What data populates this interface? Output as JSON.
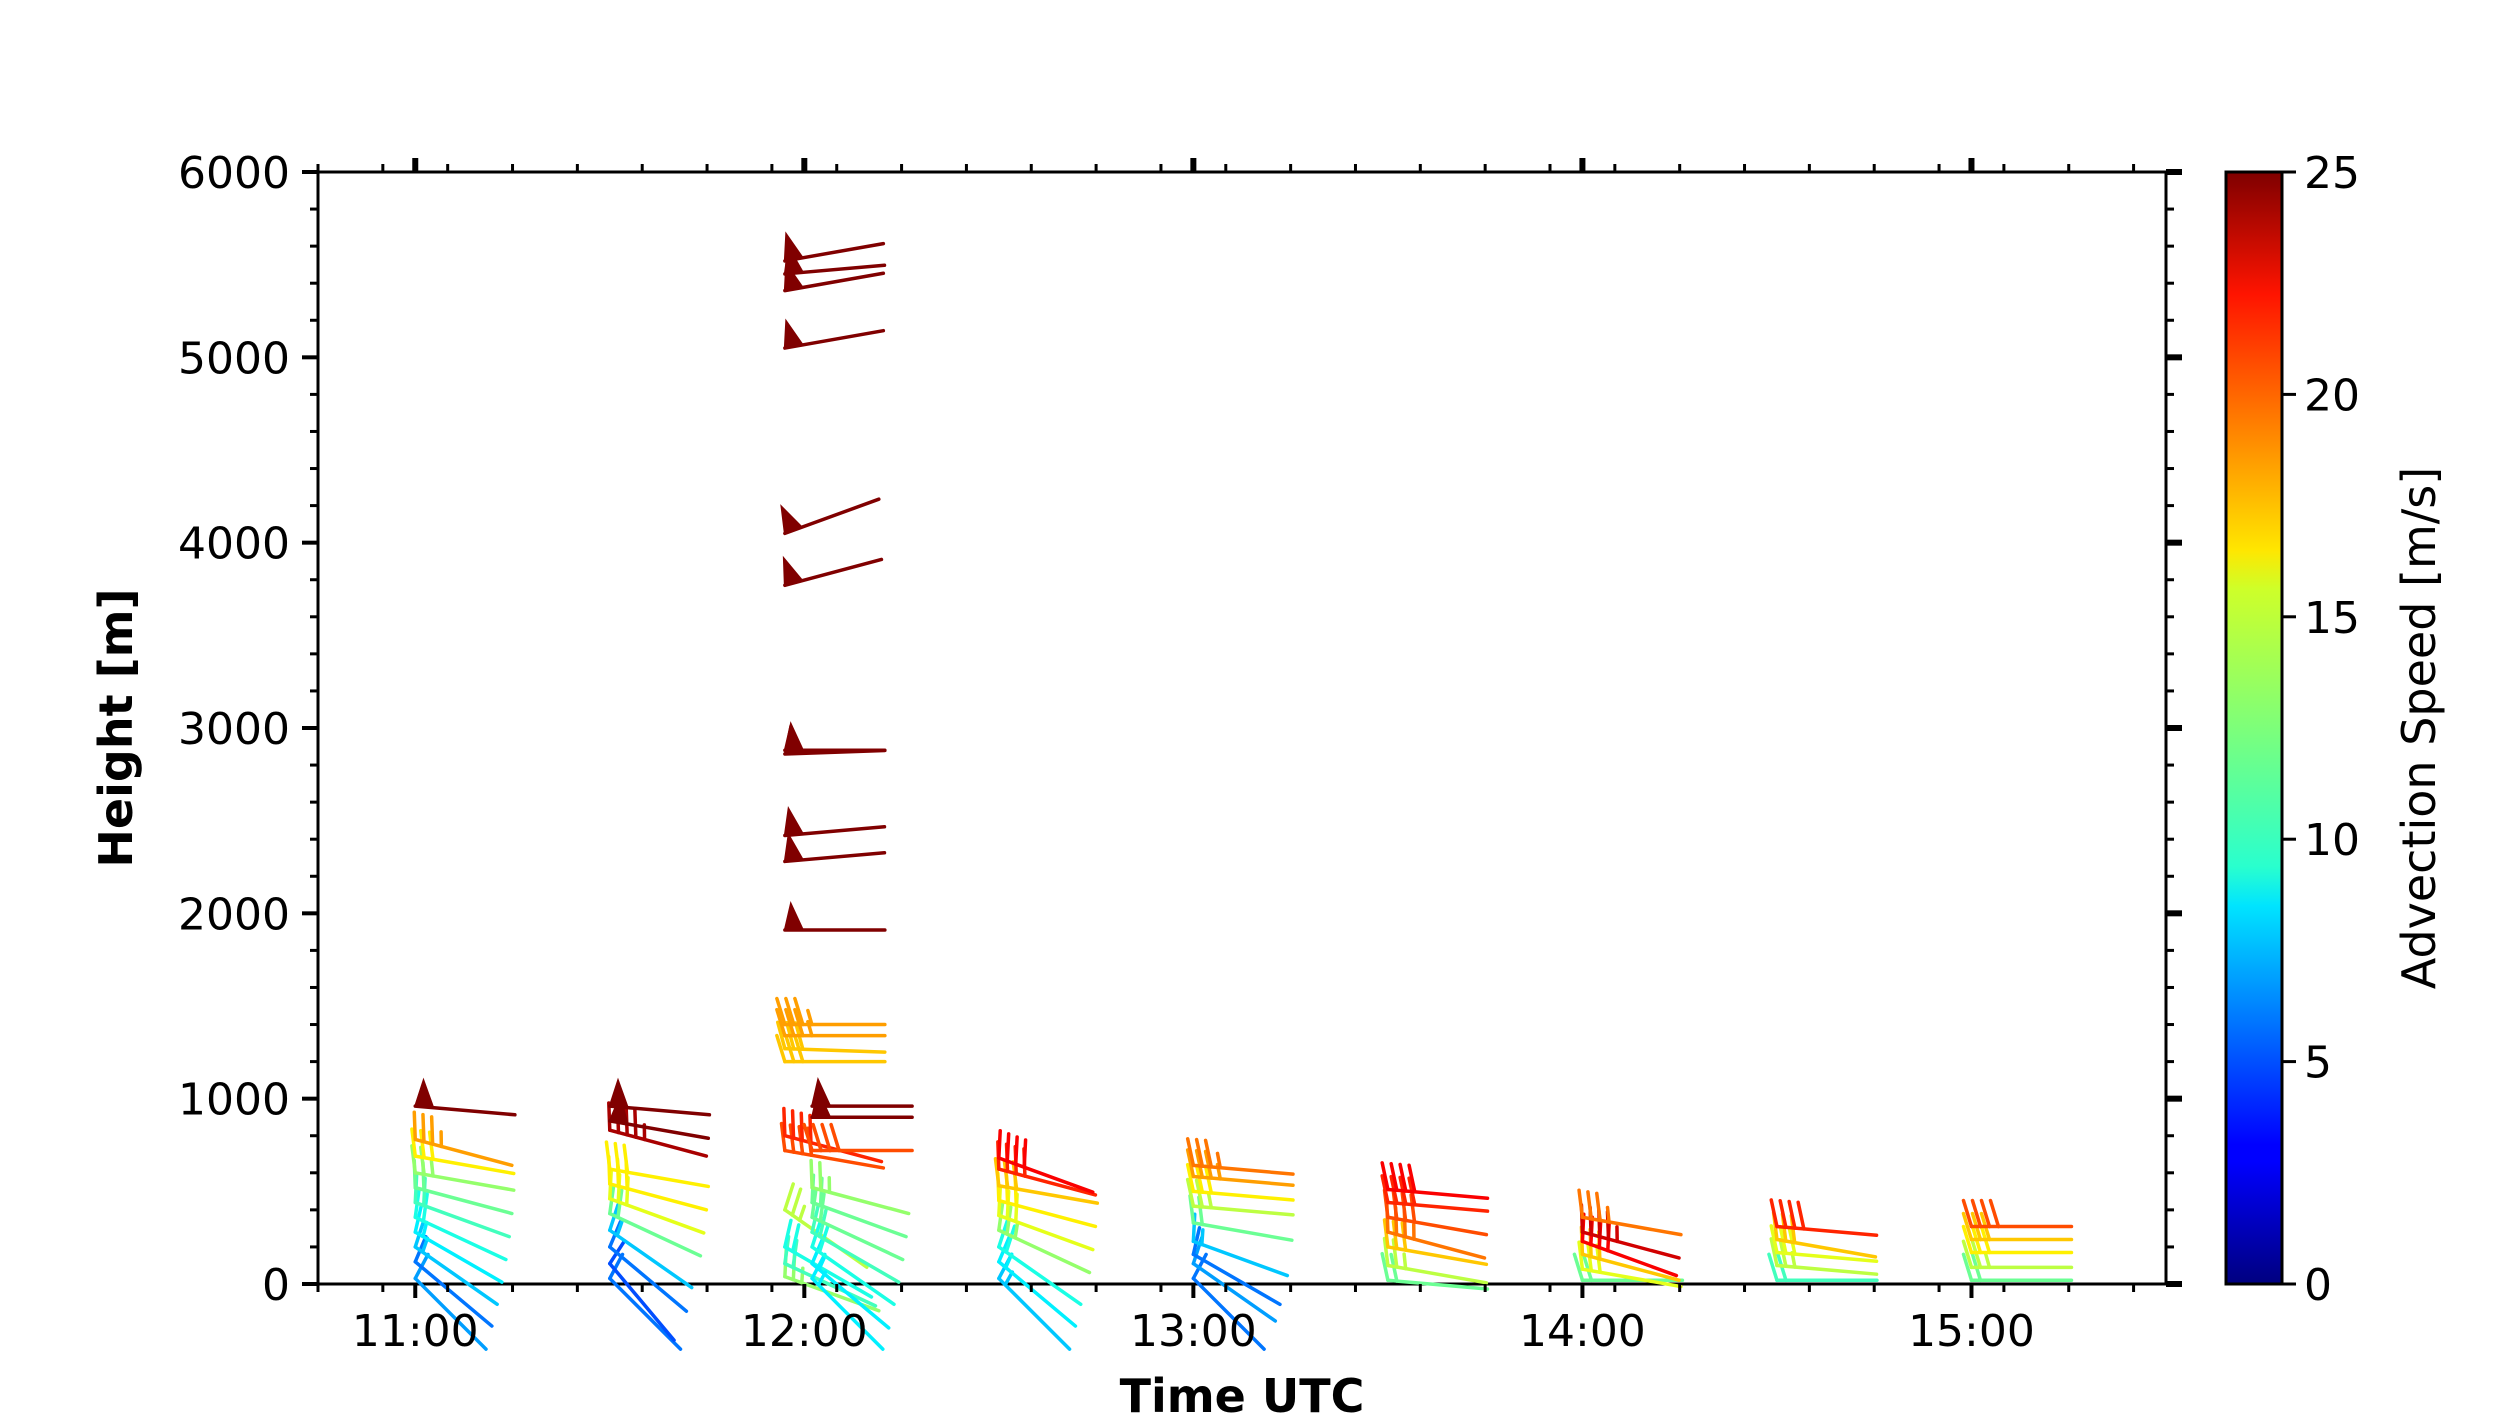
{
  "chart_data": {
    "type": "scatter",
    "marker": "wind-barb",
    "xlabel": "Time UTC",
    "ylabel": "Height [m]",
    "xlim": [
      10.75,
      15.5
    ],
    "ylim": [
      0,
      6000
    ],
    "x_ticks": [
      {
        "value": 11,
        "label": "11:00"
      },
      {
        "value": 12,
        "label": "12:00"
      },
      {
        "value": 13,
        "label": "13:00"
      },
      {
        "value": 14,
        "label": "14:00"
      },
      {
        "value": 15,
        "label": "15:00"
      }
    ],
    "y_ticks": [
      0,
      1000,
      2000,
      3000,
      4000,
      5000,
      6000
    ],
    "colorbar": {
      "label": "Advection Speed [m/s]",
      "range": [
        0,
        25
      ],
      "ticks": [
        0,
        5,
        10,
        15,
        20,
        25
      ],
      "colormap": "jet"
    },
    "grid": false,
    "profiles": [
      {
        "time": 11.0,
        "points": [
          {
            "h": 30,
            "speed": 7,
            "dir": 135
          },
          {
            "h": 120,
            "speed": 6,
            "dir": 130
          },
          {
            "h": 200,
            "speed": 8,
            "dir": 125
          },
          {
            "h": 280,
            "speed": 9,
            "dir": 120
          },
          {
            "h": 360,
            "speed": 10,
            "dir": 115
          },
          {
            "h": 440,
            "speed": 11,
            "dir": 110
          },
          {
            "h": 520,
            "speed": 12,
            "dir": 105
          },
          {
            "h": 600,
            "speed": 13,
            "dir": 100
          },
          {
            "h": 690,
            "speed": 16,
            "dir": 100
          },
          {
            "h": 780,
            "speed": 18,
            "dir": 105
          },
          {
            "h": 960,
            "speed": 25,
            "dir": 95
          }
        ]
      },
      {
        "time": 11.5,
        "points": [
          {
            "h": 30,
            "speed": 6,
            "dir": 135
          },
          {
            "h": 110,
            "speed": 5,
            "dir": 140
          },
          {
            "h": 200,
            "speed": 6,
            "dir": 130
          },
          {
            "h": 290,
            "speed": 8,
            "dir": 125
          },
          {
            "h": 380,
            "speed": 12,
            "dir": 115
          },
          {
            "h": 460,
            "speed": 15,
            "dir": 110
          },
          {
            "h": 540,
            "speed": 16,
            "dir": 105
          },
          {
            "h": 620,
            "speed": 16,
            "dir": 100
          },
          {
            "h": 830,
            "speed": 24,
            "dir": 105
          },
          {
            "h": 880,
            "speed": 25,
            "dir": 100
          },
          {
            "h": 960,
            "speed": 25,
            "dir": 95
          }
        ]
      },
      {
        "time": 11.95,
        "points": [
          {
            "h": 40,
            "speed": 13,
            "dir": 110
          },
          {
            "h": 110,
            "speed": 11,
            "dir": 115
          },
          {
            "h": 200,
            "speed": 10,
            "dir": 120
          },
          {
            "h": 400,
            "speed": 14,
            "dir": 125
          },
          {
            "h": 720,
            "speed": 20,
            "dir": 100
          },
          {
            "h": 800,
            "speed": 21,
            "dir": 105
          },
          {
            "h": 1200,
            "speed": 17,
            "dir": 90
          },
          {
            "h": 1270,
            "speed": 17,
            "dir": 92
          },
          {
            "h": 1340,
            "speed": 18,
            "dir": 90
          },
          {
            "h": 1400,
            "speed": 18,
            "dir": 90
          },
          {
            "h": 1910,
            "speed": 25,
            "dir": 90
          },
          {
            "h": 2280,
            "speed": 25,
            "dir": 85
          },
          {
            "h": 2420,
            "speed": 25,
            "dir": 85
          },
          {
            "h": 2860,
            "speed": 25,
            "dir": 88
          },
          {
            "h": 2880,
            "speed": 25,
            "dir": 90
          },
          {
            "h": 3770,
            "speed": 25,
            "dir": 75
          },
          {
            "h": 4050,
            "speed": 25,
            "dir": 70
          },
          {
            "h": 5050,
            "speed": 25,
            "dir": 80
          },
          {
            "h": 5360,
            "speed": 25,
            "dir": 80
          },
          {
            "h": 5450,
            "speed": 25,
            "dir": 85
          },
          {
            "h": 5520,
            "speed": 25,
            "dir": 80
          }
        ]
      },
      {
        "time": 12.02,
        "points": [
          {
            "h": 30,
            "speed": 9,
            "dir": 135
          },
          {
            "h": 110,
            "speed": 9,
            "dir": 130
          },
          {
            "h": 200,
            "speed": 10,
            "dir": 125
          },
          {
            "h": 280,
            "speed": 11,
            "dir": 120
          },
          {
            "h": 360,
            "speed": 12,
            "dir": 115
          },
          {
            "h": 440,
            "speed": 12,
            "dir": 110
          },
          {
            "h": 520,
            "speed": 13,
            "dir": 105
          },
          {
            "h": 720,
            "speed": 20,
            "dir": 90
          },
          {
            "h": 900,
            "speed": 25,
            "dir": 90
          },
          {
            "h": 960,
            "speed": 25,
            "dir": 90
          }
        ]
      },
      {
        "time": 12.5,
        "points": [
          {
            "h": 30,
            "speed": 8,
            "dir": 135
          },
          {
            "h": 120,
            "speed": 9,
            "dir": 130
          },
          {
            "h": 200,
            "speed": 10,
            "dir": 125
          },
          {
            "h": 290,
            "speed": 13,
            "dir": 115
          },
          {
            "h": 370,
            "speed": 15,
            "dir": 110
          },
          {
            "h": 450,
            "speed": 16,
            "dir": 105
          },
          {
            "h": 530,
            "speed": 17,
            "dir": 100
          },
          {
            "h": 620,
            "speed": 21,
            "dir": 105
          },
          {
            "h": 680,
            "speed": 22,
            "dir": 110
          }
        ]
      },
      {
        "time": 13.0,
        "points": [
          {
            "h": 30,
            "speed": 6,
            "dir": 135
          },
          {
            "h": 110,
            "speed": 7,
            "dir": 125
          },
          {
            "h": 160,
            "speed": 6,
            "dir": 120
          },
          {
            "h": 230,
            "speed": 8,
            "dir": 110
          },
          {
            "h": 330,
            "speed": 12,
            "dir": 100
          },
          {
            "h": 420,
            "speed": 14,
            "dir": 95
          },
          {
            "h": 500,
            "speed": 16,
            "dir": 95
          },
          {
            "h": 580,
            "speed": 18,
            "dir": 95
          },
          {
            "h": 640,
            "speed": 19,
            "dir": 95
          }
        ]
      },
      {
        "time": 13.5,
        "points": [
          {
            "h": 20,
            "speed": 12,
            "dir": 95
          },
          {
            "h": 100,
            "speed": 14,
            "dir": 100
          },
          {
            "h": 200,
            "speed": 17,
            "dir": 100
          },
          {
            "h": 280,
            "speed": 19,
            "dir": 105
          },
          {
            "h": 360,
            "speed": 20,
            "dir": 100
          },
          {
            "h": 440,
            "speed": 21,
            "dir": 95
          },
          {
            "h": 510,
            "speed": 22,
            "dir": 95
          }
        ]
      },
      {
        "time": 14.0,
        "points": [
          {
            "h": 20,
            "speed": 12,
            "dir": 90
          },
          {
            "h": 80,
            "speed": 15,
            "dir": 100
          },
          {
            "h": 160,
            "speed": 17,
            "dir": 105
          },
          {
            "h": 230,
            "speed": 22,
            "dir": 110
          },
          {
            "h": 280,
            "speed": 23,
            "dir": 105
          },
          {
            "h": 360,
            "speed": 19,
            "dir": 100
          }
        ]
      },
      {
        "time": 14.5,
        "points": [
          {
            "h": 20,
            "speed": 11,
            "dir": 90
          },
          {
            "h": 100,
            "speed": 14,
            "dir": 95
          },
          {
            "h": 170,
            "speed": 15,
            "dir": 95
          },
          {
            "h": 240,
            "speed": 17,
            "dir": 100
          },
          {
            "h": 310,
            "speed": 21,
            "dir": 95
          }
        ]
      },
      {
        "time": 15.0,
        "points": [
          {
            "h": 20,
            "speed": 12,
            "dir": 90
          },
          {
            "h": 90,
            "speed": 14,
            "dir": 90
          },
          {
            "h": 170,
            "speed": 16,
            "dir": 90
          },
          {
            "h": 240,
            "speed": 17,
            "dir": 90
          },
          {
            "h": 310,
            "speed": 20,
            "dir": 90
          }
        ]
      }
    ]
  }
}
